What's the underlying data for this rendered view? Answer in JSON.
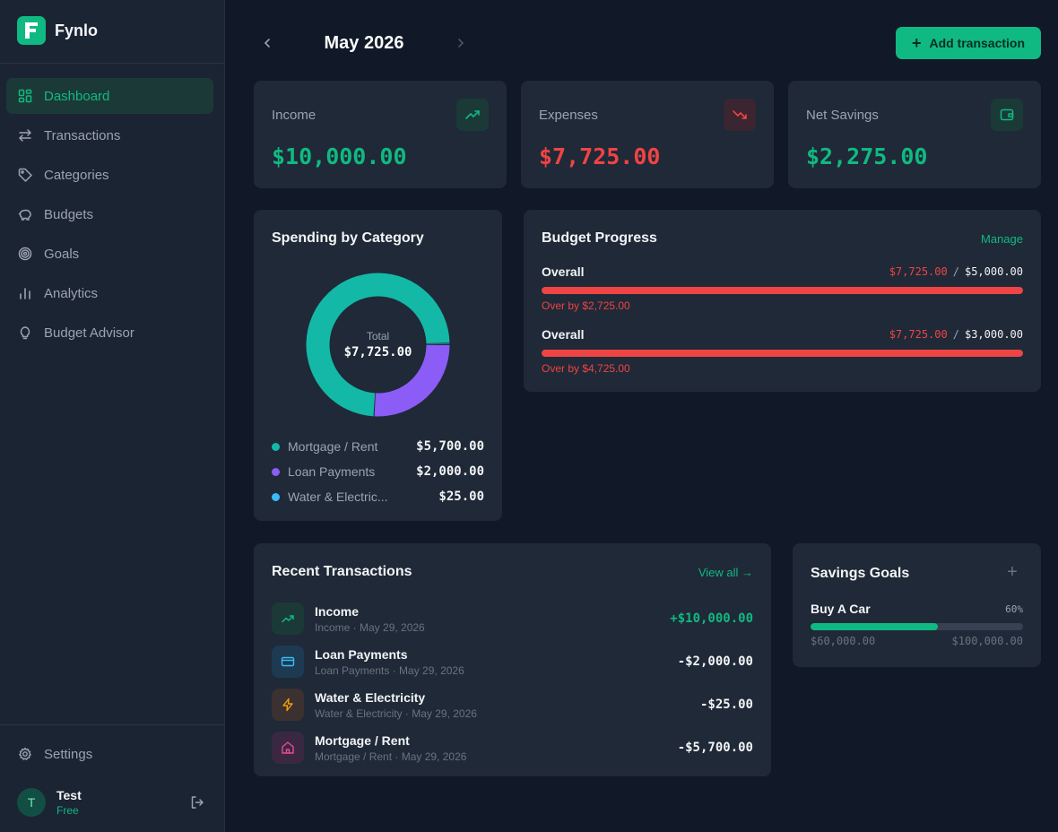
{
  "app": {
    "name": "Fynlo"
  },
  "sidebar": {
    "items": [
      {
        "label": "Dashboard",
        "icon": "dashboard-icon",
        "active": true
      },
      {
        "label": "Transactions",
        "icon": "arrows-icon"
      },
      {
        "label": "Categories",
        "icon": "tag-icon"
      },
      {
        "label": "Budgets",
        "icon": "piggy-bank-icon"
      },
      {
        "label": "Goals",
        "icon": "target-icon"
      },
      {
        "label": "Analytics",
        "icon": "bar-chart-icon"
      },
      {
        "label": "Budget Advisor",
        "icon": "lightbulb-icon"
      }
    ],
    "settings_label": "Settings",
    "user": {
      "initial": "T",
      "name": "Test",
      "plan": "Free"
    }
  },
  "header": {
    "month": "May 2026",
    "add_button_label": "Add transaction"
  },
  "stats": {
    "income": {
      "label": "Income",
      "value": "$10,000.00",
      "color": "#10b981"
    },
    "expenses": {
      "label": "Expenses",
      "value": "$7,725.00",
      "color": "#ef4444"
    },
    "savings": {
      "label": "Net Savings",
      "value": "$2,275.00",
      "color": "#10b981"
    }
  },
  "spending": {
    "title": "Spending by Category",
    "total_label": "Total",
    "total_value": "$7,725.00",
    "categories": [
      {
        "name": "Mortgage / Rent",
        "value": "$5,700.00",
        "amount": 5700,
        "color": "#14b8a6"
      },
      {
        "name": "Loan Payments",
        "value": "$2,000.00",
        "amount": 2000,
        "color": "#8b5cf6"
      },
      {
        "name": "Water & Electric...",
        "value": "$25.00",
        "amount": 25,
        "color": "#38bdf8"
      }
    ]
  },
  "budget": {
    "title": "Budget Progress",
    "manage_label": "Manage",
    "rows": [
      {
        "name": "Overall",
        "spent": "$7,725.00",
        "sep": "/",
        "limit": "$5,000.00",
        "progress": 1.0,
        "over": "Over by $2,725.00"
      },
      {
        "name": "Overall",
        "spent": "$7,725.00",
        "sep": "/",
        "limit": "$3,000.00",
        "progress": 1.0,
        "over": "Over by $4,725.00"
      }
    ]
  },
  "transactions": {
    "title": "Recent Transactions",
    "view_all_label": "View all →",
    "rows": [
      {
        "name": "Income",
        "sub": "Income · May 29, 2026",
        "amount": "+$10,000.00",
        "icon": "trending-up-icon",
        "positive": true
      },
      {
        "name": "Loan Payments",
        "sub": "Loan Payments · May 29, 2026",
        "amount": "-$2,000.00",
        "icon": "credit-card-icon",
        "positive": false
      },
      {
        "name": "Water & Electricity",
        "sub": "Water & Electricity · May 29, 2026",
        "amount": "-$25.00",
        "icon": "lightning-icon",
        "positive": false
      },
      {
        "name": "Mortgage / Rent",
        "sub": "Mortgage / Rent · May 29, 2026",
        "amount": "-$5,700.00",
        "icon": "home-icon",
        "positive": false
      }
    ]
  },
  "goals": {
    "title": "Savings Goals",
    "add_label": "+",
    "items": [
      {
        "name": "Buy A Car",
        "percent_label": "60%",
        "progress": 0.6,
        "saved": "$60,000.00",
        "target": "$100,000.00"
      }
    ]
  }
}
